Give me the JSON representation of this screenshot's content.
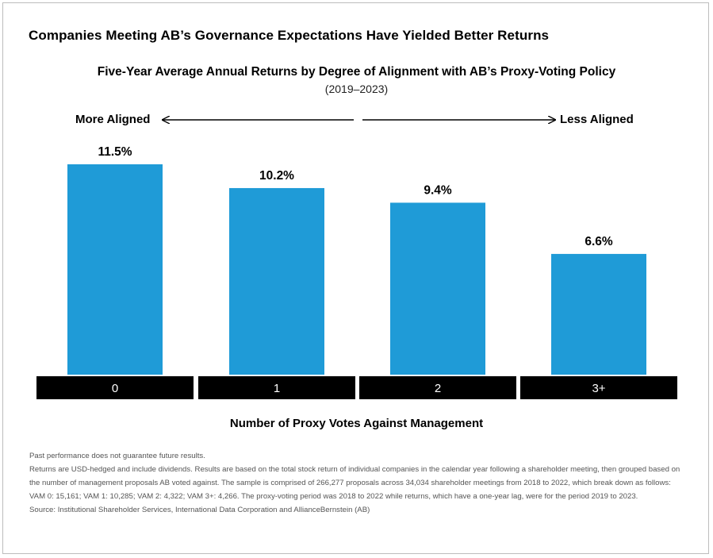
{
  "title": "Companies Meeting AB’s Governance Expectations Have Yielded Better Returns",
  "chart_title": "Five-Year Average Annual Returns by Degree of Alignment with AB’s Proxy-Voting Policy",
  "chart_subtitle": "(2019–2023)",
  "direction": {
    "left_label": "More Aligned",
    "right_label": "Less Aligned"
  },
  "chart_data": {
    "type": "bar",
    "title": "Five-Year Average Annual Returns by Degree of Alignment with AB’s Proxy-Voting Policy",
    "subtitle": "(2019–2023)",
    "categories": [
      "0",
      "1",
      "2",
      "3+"
    ],
    "values": [
      11.5,
      10.2,
      9.4,
      6.6
    ],
    "value_labels": [
      "11.5%",
      "10.2%",
      "9.4%",
      "6.6%"
    ],
    "xlabel": "Number of Proxy Votes Against Management",
    "ylabel": "",
    "ylim": [
      0,
      12.5
    ],
    "grid": false,
    "bar_color": "#1f9bd7",
    "category_box_color": "#000000",
    "category_text_color": "#ffffff"
  },
  "notes": {
    "line1": "Past performance does not guarantee future results.",
    "line2": "Returns are USD-hedged and include dividends. Results are based on the total stock return of individual companies in the calendar year following a shareholder meeting, then grouped based on the number of management proposals AB voted against. The sample is comprised of 266,277 proposals across 34,034 shareholder meetings from 2018 to 2022, which break down as follows: VAM 0: 15,161; VAM 1: 10,285; VAM 2: 4,322; VAM 3+: 4,266. The proxy-voting period was 2018 to 2022 while returns, which have a one-year lag, were for the period 2019 to 2023.",
    "source": "Source:  Institutional Shareholder Services, International Data Corporation and AllianceBernstein (AB)"
  }
}
